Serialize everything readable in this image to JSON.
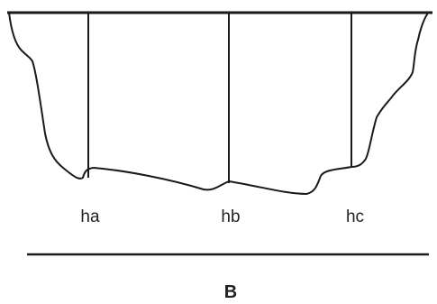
{
  "labels": {
    "ha": "ha",
    "hb": "hb",
    "hc": "hc",
    "width": "B"
  },
  "colors": {
    "stroke": "#1a1a1a",
    "text": "#222222",
    "background": "#ffffff"
  }
}
